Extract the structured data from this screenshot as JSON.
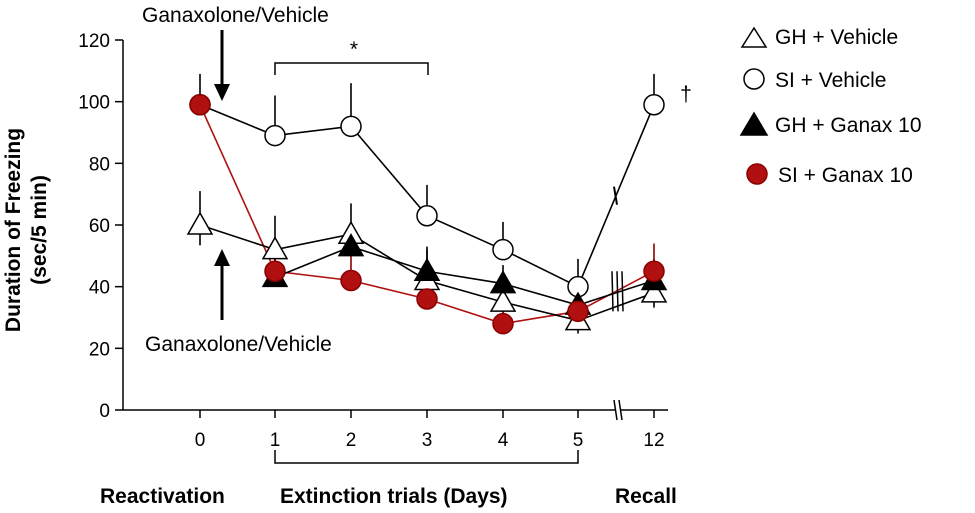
{
  "chart_data": {
    "type": "line",
    "title": "",
    "ylabel_line1": "Duration of Freezing",
    "ylabel_line2": "(sec/5 min)",
    "xlabel": "",
    "ylim": [
      0,
      120
    ],
    "yticks": [
      0,
      20,
      40,
      60,
      80,
      100,
      120
    ],
    "x_categories": [
      "0",
      "1",
      "2",
      "3",
      "4",
      "5",
      "12"
    ],
    "phase_labels": {
      "reactivation": "Reactivation",
      "extinction": "Extinction trials (Days)",
      "recall": "Recall"
    },
    "annotations": {
      "arrow_top": "Ganaxolone/Vehicle",
      "arrow_bottom": "Ganaxolone/Vehicle",
      "significance": "*",
      "dagger": "†"
    },
    "series": [
      {
        "name": "GH + Vehicle",
        "marker": "triangle-open",
        "line_color": "#000000",
        "fill": "#ffffff",
        "stroke": "#000000",
        "values": [
          60,
          52,
          57,
          42,
          35,
          29,
          38
        ],
        "errors": [
          11,
          11,
          10,
          10,
          8,
          7,
          8
        ]
      },
      {
        "name": "SI + Vehicle",
        "marker": "circle-open",
        "line_color": "#000000",
        "fill": "#ffffff",
        "stroke": "#000000",
        "values": [
          99,
          89,
          92,
          63,
          52,
          40,
          99
        ],
        "errors": [
          10,
          13,
          14,
          10,
          9,
          9,
          10
        ],
        "break_segment": [
          0.55,
          0.65
        ]
      },
      {
        "name": "GH + Ganax 10",
        "marker": "triangle-filled",
        "line_color": "#000000",
        "fill": "#000000",
        "stroke": "#000000",
        "values": [
          null,
          43,
          53,
          45,
          41,
          34,
          42
        ],
        "errors": [
          null,
          8,
          7,
          8,
          6,
          6,
          7
        ]
      },
      {
        "name": "SI + Ganax 10",
        "marker": "circle-filled",
        "line_color": "#b01010",
        "fill": "#b01010",
        "stroke": "#8b0000",
        "values": [
          99,
          45,
          42,
          36,
          28,
          32,
          45
        ],
        "errors": [
          null,
          9,
          8,
          9,
          8,
          6,
          9
        ]
      }
    ]
  }
}
